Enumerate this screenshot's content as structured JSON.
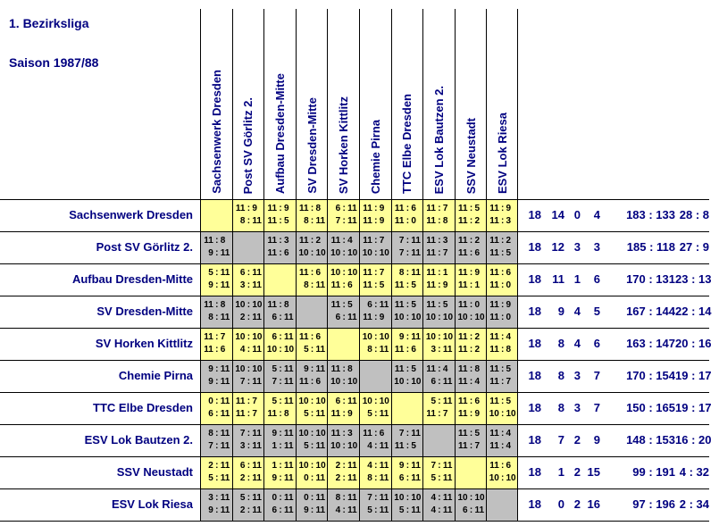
{
  "page": {
    "title": "1. Bezirksliga",
    "subtitle": "Saison 1987/88"
  },
  "colors": {
    "row_yellow": "#FFFF99",
    "row_gray": "#C0C0C0",
    "heading_text": "#000080",
    "cell_text": "#000000",
    "grid_line": "#000000",
    "background": "#FFFFFF"
  },
  "table": {
    "column_headers": [
      "Sachsenwerk Dresden",
      "Post SV Görlitz 2.",
      "Aufbau Dresden-Mitte",
      "SV Dresden-Mitte",
      "SV Horken Kittlitz",
      "Chemie Pirna",
      "TTC Elbe Dresden",
      "ESV Lok Bautzen 2.",
      "SSV Neustadt",
      "ESV Lok Riesa"
    ],
    "rows": [
      {
        "team": "Sachsenwerk Dresden",
        "row_color": "yellow",
        "results": [
          null,
          [
            "11:9",
            "8:11"
          ],
          [
            "11:9",
            "11:5"
          ],
          [
            "11:8",
            "8:11"
          ],
          [
            "6:11",
            "7:11"
          ],
          [
            "11:9",
            "11:9"
          ],
          [
            "11:6",
            "11:0"
          ],
          [
            "11:7",
            "11:8"
          ],
          [
            "11:5",
            "11:2"
          ],
          [
            "11:9",
            "11:3"
          ]
        ],
        "stats": {
          "games": "18",
          "won": "14",
          "drawn": "0",
          "lost": "4",
          "sets_ratio": "183 : 133",
          "points_ratio": "28 : 8"
        }
      },
      {
        "team": "Post SV Görlitz 2.",
        "row_color": "gray",
        "results": [
          [
            "11:8",
            "9:11"
          ],
          null,
          [
            "11:3",
            "11:6"
          ],
          [
            "11:2",
            "10:10"
          ],
          [
            "11:4",
            "10:10"
          ],
          [
            "11:7",
            "10:10"
          ],
          [
            "7:11",
            "7:11"
          ],
          [
            "11:3",
            "11:7"
          ],
          [
            "11:2",
            "11:6"
          ],
          [
            "11:2",
            "11:5"
          ]
        ],
        "stats": {
          "games": "18",
          "won": "12",
          "drawn": "3",
          "lost": "3",
          "sets_ratio": "185 : 118",
          "points_ratio": "27 : 9"
        }
      },
      {
        "team": "Aufbau Dresden-Mitte",
        "row_color": "yellow",
        "results": [
          [
            "5:11",
            "9:11"
          ],
          [
            "6:11",
            "3:11"
          ],
          null,
          [
            "11:6",
            "8:11"
          ],
          [
            "10:10",
            "11:6"
          ],
          [
            "11:7",
            "11:5"
          ],
          [
            "8:11",
            "11:5"
          ],
          [
            "11:1",
            "11:9"
          ],
          [
            "11:9",
            "11:1"
          ],
          [
            "11:6",
            "11:0"
          ]
        ],
        "stats": {
          "games": "18",
          "won": "11",
          "drawn": "1",
          "lost": "6",
          "sets_ratio": "170 : 131",
          "points_ratio": "23 : 13"
        }
      },
      {
        "team": "SV Dresden-Mitte",
        "row_color": "gray",
        "results": [
          [
            "11:8",
            "8:11"
          ],
          [
            "10:10",
            "2:11"
          ],
          [
            "11:8",
            "6:11"
          ],
          null,
          [
            "11:5",
            "6:11"
          ],
          [
            "6:11",
            "11:9"
          ],
          [
            "11:5",
            "10:10"
          ],
          [
            "11:5",
            "10:10"
          ],
          [
            "11:0",
            "10:10"
          ],
          [
            "11:9",
            "11:0"
          ]
        ],
        "stats": {
          "games": "18",
          "won": "9",
          "drawn": "4",
          "lost": "5",
          "sets_ratio": "167 : 144",
          "points_ratio": "22 : 14"
        }
      },
      {
        "team": "SV Horken Kittlitz",
        "row_color": "yellow",
        "results": [
          [
            "11:7",
            "11:6"
          ],
          [
            "10:10",
            "4:11"
          ],
          [
            "6:11",
            "10:10"
          ],
          [
            "11:6",
            "5:11"
          ],
          null,
          [
            "10:10",
            "8:11"
          ],
          [
            "9:11",
            "11:6"
          ],
          [
            "10:10",
            "3:11"
          ],
          [
            "11:2",
            "11:2"
          ],
          [
            "11:4",
            "11:8"
          ]
        ],
        "stats": {
          "games": "18",
          "won": "8",
          "drawn": "4",
          "lost": "6",
          "sets_ratio": "163 : 147",
          "points_ratio": "20 : 16"
        }
      },
      {
        "team": "Chemie Pirna",
        "row_color": "gray",
        "results": [
          [
            "9:11",
            "9:11"
          ],
          [
            "10:10",
            "7:11"
          ],
          [
            "5:11",
            "7:11"
          ],
          [
            "9:11",
            "11:6"
          ],
          [
            "11:8",
            "10:10"
          ],
          null,
          [
            "11:5",
            "10:10"
          ],
          [
            "11:4",
            "6:11"
          ],
          [
            "11:8",
            "11:4"
          ],
          [
            "11:5",
            "11:7"
          ]
        ],
        "stats": {
          "games": "18",
          "won": "8",
          "drawn": "3",
          "lost": "7",
          "sets_ratio": "170 : 154",
          "points_ratio": "19 : 17"
        }
      },
      {
        "team": "TTC Elbe Dresden",
        "row_color": "yellow",
        "results": [
          [
            "0:11",
            "6:11"
          ],
          [
            "11:7",
            "11:7"
          ],
          [
            "5:11",
            "11:8"
          ],
          [
            "10:10",
            "5:11"
          ],
          [
            "6:11",
            "11:9"
          ],
          [
            "10:10",
            "5:11"
          ],
          null,
          [
            "5:11",
            "11:7"
          ],
          [
            "11:6",
            "11:9"
          ],
          [
            "11:5",
            "10:10"
          ]
        ],
        "stats": {
          "games": "18",
          "won": "8",
          "drawn": "3",
          "lost": "7",
          "sets_ratio": "150 : 165",
          "points_ratio": "19 : 17"
        }
      },
      {
        "team": "ESV Lok Bautzen 2.",
        "row_color": "gray",
        "results": [
          [
            "8:11",
            "7:11"
          ],
          [
            "7:11",
            "3:11"
          ],
          [
            "9:11",
            "1:11"
          ],
          [
            "10:10",
            "5:11"
          ],
          [
            "11:3",
            "10:10"
          ],
          [
            "11:6",
            "4:11"
          ],
          [
            "7:11",
            "11:5"
          ],
          null,
          [
            "11:5",
            "11:7"
          ],
          [
            "11:4",
            "11:4"
          ]
        ],
        "stats": {
          "games": "18",
          "won": "7",
          "drawn": "2",
          "lost": "9",
          "sets_ratio": "148 : 153",
          "points_ratio": "16 : 20"
        }
      },
      {
        "team": "SSV Neustadt",
        "row_color": "yellow",
        "results": [
          [
            "2:11",
            "5:11"
          ],
          [
            "6:11",
            "2:11"
          ],
          [
            "1:11",
            "9:11"
          ],
          [
            "10:10",
            "0:11"
          ],
          [
            "2:11",
            "2:11"
          ],
          [
            "4:11",
            "8:11"
          ],
          [
            "9:11",
            "6:11"
          ],
          [
            "7:11",
            "5:11"
          ],
          null,
          [
            "11:6",
            "10:10"
          ]
        ],
        "stats": {
          "games": "18",
          "won": "1",
          "drawn": "2",
          "lost": "15",
          "sets_ratio": "99 : 191",
          "points_ratio": "4 : 32"
        }
      },
      {
        "team": "ESV Lok Riesa",
        "row_color": "gray",
        "results": [
          [
            "3:11",
            "9:11"
          ],
          [
            "5:11",
            "2:11"
          ],
          [
            "0:11",
            "6:11"
          ],
          [
            "0:11",
            "9:11"
          ],
          [
            "8:11",
            "4:11"
          ],
          [
            "7:11",
            "5:11"
          ],
          [
            "10:10",
            "5:11"
          ],
          [
            "4:11",
            "4:11"
          ],
          [
            "10:10",
            "6:11"
          ],
          null
        ],
        "stats": {
          "games": "18",
          "won": "0",
          "drawn": "2",
          "lost": "16",
          "sets_ratio": "97 : 196",
          "points_ratio": "2 : 34"
        }
      }
    ]
  }
}
